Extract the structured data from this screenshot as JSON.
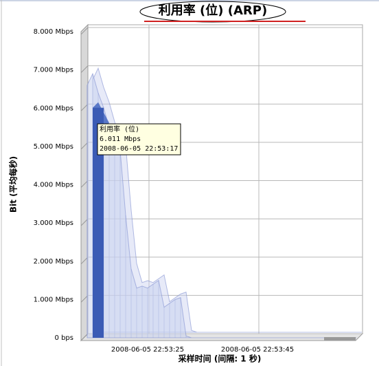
{
  "chart_data": {
    "type": "area",
    "title": "利用率 (位) (ARP)",
    "x_label": "采样时间 (间隔: 1 秒)",
    "y_label": "Bit (平均每秒)",
    "categories": [
      null,
      null,
      null,
      null,
      null,
      null,
      null,
      null,
      null,
      null,
      null,
      "2008-06-05 22:53:25",
      null,
      null,
      null,
      null,
      null,
      null,
      null,
      null,
      null,
      null,
      null,
      null,
      null,
      null,
      null,
      null,
      null,
      null,
      null,
      "2008-06-05 22:53:45",
      null,
      null,
      null,
      null,
      null,
      null,
      null,
      null,
      null,
      null,
      null,
      null,
      null,
      null,
      null,
      null,
      null,
      null
    ],
    "series": [
      {
        "name": "利用率 (位)",
        "color": "#c9d1ef",
        "values": [
          6.6,
          6.9,
          6.4,
          6.011,
          5.5,
          5.1,
          4.9,
          3.2,
          1.8,
          1.3,
          1.35,
          1.3,
          1.4,
          1.5,
          0.8,
          0.9,
          1.0,
          1.05,
          0.05,
          0,
          0,
          0,
          0,
          0,
          0,
          0,
          0,
          0,
          0,
          0,
          0,
          0,
          0,
          0,
          0,
          0,
          0,
          0,
          0,
          0,
          0,
          0,
          0,
          0,
          0,
          0,
          0,
          0,
          0,
          0
        ]
      }
    ],
    "ylim": [
      0,
      8
    ],
    "yticks": [
      {
        "value": 0,
        "label": "0 bps"
      },
      {
        "value": 1,
        "label": "1.000 Mbps"
      },
      {
        "value": 2,
        "label": "2.000 Mbps"
      },
      {
        "value": 3,
        "label": "3.000 Mbps"
      },
      {
        "value": 4,
        "label": "4.000 Mbps"
      },
      {
        "value": 5,
        "label": "5.000 Mbps"
      },
      {
        "value": 6,
        "label": "6.000 Mbps"
      },
      {
        "value": 7,
        "label": "7.000 Mbps"
      },
      {
        "value": 8,
        "label": "8.000 Mbps"
      }
    ],
    "grid": true,
    "tooltip": {
      "series": "利用率 (位)",
      "value": 6.011,
      "value_label": "6.011 Mbps",
      "time": "2008-06-05 22:53:17"
    },
    "highlight_color": "#3b5bb5"
  }
}
